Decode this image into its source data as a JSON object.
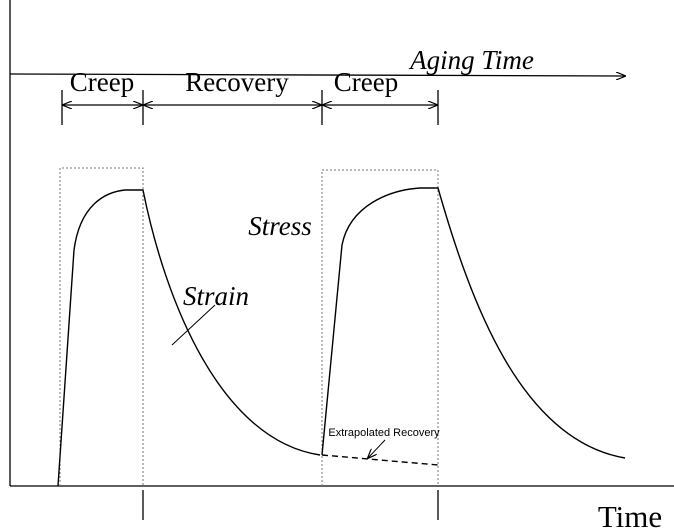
{
  "labels": {
    "aging_time": "Aging Time",
    "creep_1": "Creep",
    "recovery": "Recovery",
    "creep_2": "Creep",
    "stress": "Stress",
    "strain": "Strain",
    "extrapolated_recovery": "Extrapolated Recovery",
    "time": "Time"
  }
}
